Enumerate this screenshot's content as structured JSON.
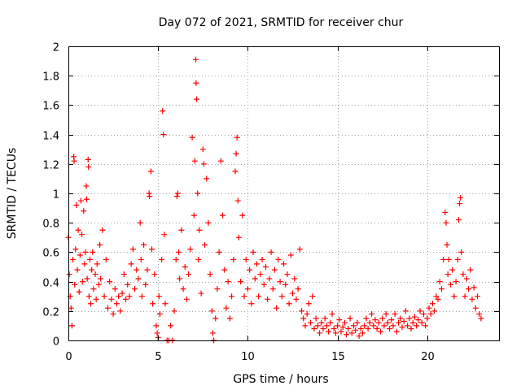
{
  "chart_data": {
    "type": "scatter",
    "title": "Day 072 of 2021, SRMTID for receiver chur",
    "xlabel": "GPS time / hours",
    "ylabel": "SRMTID / TECUs",
    "xlim": [
      0,
      24
    ],
    "ylim": [
      0,
      2
    ],
    "x_ticks": [
      0,
      5,
      10,
      15,
      20
    ],
    "x_tick_labels": [
      "0",
      "5",
      "10",
      "15",
      "20"
    ],
    "y_ticks": [
      0,
      0.2,
      0.4,
      0.6,
      0.8,
      1,
      1.2,
      1.4,
      1.6,
      1.8,
      2
    ],
    "y_tick_labels": [
      "0",
      "0.2",
      "0.4",
      "0.6",
      "0.8",
      "1",
      "1.2",
      "1.4",
      "1.6",
      "1.8",
      "2"
    ],
    "grid": true,
    "marker": "+",
    "marker_color": "#ff0000",
    "series": [
      {
        "name": "SRMTID",
        "points": [
          [
            0.0,
            0.7
          ],
          [
            0.05,
            0.45
          ],
          [
            0.1,
            0.3
          ],
          [
            0.15,
            0.22
          ],
          [
            0.2,
            0.1
          ],
          [
            0.25,
            0.55
          ],
          [
            0.3,
            1.25
          ],
          [
            0.32,
            1.22
          ],
          [
            0.35,
            0.38
          ],
          [
            0.4,
            0.62
          ],
          [
            0.45,
            0.92
          ],
          [
            0.5,
            0.48
          ],
          [
            0.55,
            0.75
          ],
          [
            0.6,
            0.33
          ],
          [
            0.65,
            0.58
          ],
          [
            0.7,
            0.95
          ],
          [
            0.75,
            0.72
          ],
          [
            0.8,
            0.4
          ],
          [
            0.85,
            0.88
          ],
          [
            0.9,
            0.52
          ],
          [
            0.95,
            0.6
          ],
          [
            1.0,
            1.05
          ],
          [
            1.02,
            0.96
          ],
          [
            1.05,
            0.42
          ],
          [
            1.1,
            1.23
          ],
          [
            1.12,
            1.18
          ],
          [
            1.15,
            0.3
          ],
          [
            1.2,
            0.55
          ],
          [
            1.25,
            0.25
          ],
          [
            1.3,
            0.48
          ],
          [
            1.35,
            0.6
          ],
          [
            1.4,
            0.35
          ],
          [
            1.5,
            0.45
          ],
          [
            1.55,
            0.28
          ],
          [
            1.6,
            0.52
          ],
          [
            1.7,
            0.38
          ],
          [
            1.75,
            0.65
          ],
          [
            1.8,
            0.42
          ],
          [
            1.9,
            0.75
          ],
          [
            2.0,
            0.3
          ],
          [
            2.1,
            0.55
          ],
          [
            2.2,
            0.22
          ],
          [
            2.3,
            0.4
          ],
          [
            2.4,
            0.28
          ],
          [
            2.5,
            0.18
          ],
          [
            2.6,
            0.35
          ],
          [
            2.7,
            0.25
          ],
          [
            2.8,
            0.3
          ],
          [
            2.9,
            0.2
          ],
          [
            3.0,
            0.32
          ],
          [
            3.1,
            0.45
          ],
          [
            3.2,
            0.28
          ],
          [
            3.3,
            0.38
          ],
          [
            3.4,
            0.3
          ],
          [
            3.5,
            0.52
          ],
          [
            3.6,
            0.62
          ],
          [
            3.7,
            0.35
          ],
          [
            3.8,
            0.48
          ],
          [
            3.9,
            0.42
          ],
          [
            4.0,
            0.8
          ],
          [
            4.05,
            0.55
          ],
          [
            4.1,
            0.3
          ],
          [
            4.2,
            0.65
          ],
          [
            4.3,
            0.38
          ],
          [
            4.4,
            0.48
          ],
          [
            4.5,
            1.0
          ],
          [
            4.52,
            0.98
          ],
          [
            4.6,
            1.15
          ],
          [
            4.65,
            0.62
          ],
          [
            4.7,
            0.25
          ],
          [
            4.8,
            0.45
          ],
          [
            4.9,
            0.1
          ],
          [
            4.95,
            0.05
          ],
          [
            5.0,
            0.02
          ],
          [
            5.05,
            0.3
          ],
          [
            5.1,
            0.18
          ],
          [
            5.2,
            0.55
          ],
          [
            5.25,
            1.56
          ],
          [
            5.3,
            1.4
          ],
          [
            5.35,
            0.72
          ],
          [
            5.4,
            0.25
          ],
          [
            5.5,
            0.0
          ],
          [
            5.6,
            0.0
          ],
          [
            5.7,
            0.1
          ],
          [
            5.8,
            0.0
          ],
          [
            5.9,
            0.2
          ],
          [
            6.0,
            0.55
          ],
          [
            6.05,
            0.98
          ],
          [
            6.1,
            1.0
          ],
          [
            6.15,
            0.6
          ],
          [
            6.2,
            0.42
          ],
          [
            6.3,
            0.75
          ],
          [
            6.4,
            0.35
          ],
          [
            6.5,
            0.5
          ],
          [
            6.6,
            0.28
          ],
          [
            6.7,
            0.45
          ],
          [
            6.8,
            0.62
          ],
          [
            6.9,
            1.38
          ],
          [
            7.0,
            0.85
          ],
          [
            7.05,
            1.22
          ],
          [
            7.1,
            1.91
          ],
          [
            7.12,
            1.75
          ],
          [
            7.15,
            1.64
          ],
          [
            7.2,
            1.0
          ],
          [
            7.25,
            0.55
          ],
          [
            7.3,
            0.75
          ],
          [
            7.4,
            0.32
          ],
          [
            7.5,
            1.3
          ],
          [
            7.55,
            1.2
          ],
          [
            7.6,
            0.65
          ],
          [
            7.7,
            1.1
          ],
          [
            7.8,
            0.8
          ],
          [
            7.9,
            0.45
          ],
          [
            8.0,
            0.2
          ],
          [
            8.05,
            0.05
          ],
          [
            8.1,
            0.0
          ],
          [
            8.2,
            0.15
          ],
          [
            8.3,
            0.35
          ],
          [
            8.4,
            0.6
          ],
          [
            8.5,
            1.22
          ],
          [
            8.6,
            0.85
          ],
          [
            8.7,
            0.48
          ],
          [
            8.8,
            0.22
          ],
          [
            8.9,
            0.4
          ],
          [
            9.0,
            0.15
          ],
          [
            9.1,
            0.3
          ],
          [
            9.2,
            0.55
          ],
          [
            9.3,
            1.15
          ],
          [
            9.35,
            1.27
          ],
          [
            9.4,
            1.38
          ],
          [
            9.45,
            0.95
          ],
          [
            9.5,
            0.7
          ],
          [
            9.6,
            0.4
          ],
          [
            9.7,
            0.85
          ],
          [
            9.8,
            0.3
          ],
          [
            9.9,
            0.55
          ],
          [
            10.0,
            0.35
          ],
          [
            10.1,
            0.48
          ],
          [
            10.2,
            0.25
          ],
          [
            10.3,
            0.6
          ],
          [
            10.4,
            0.42
          ],
          [
            10.5,
            0.52
          ],
          [
            10.6,
            0.3
          ],
          [
            10.7,
            0.45
          ],
          [
            10.8,
            0.55
          ],
          [
            10.9,
            0.38
          ],
          [
            11.0,
            0.5
          ],
          [
            11.1,
            0.28
          ],
          [
            11.2,
            0.42
          ],
          [
            11.3,
            0.6
          ],
          [
            11.4,
            0.35
          ],
          [
            11.5,
            0.48
          ],
          [
            11.6,
            0.22
          ],
          [
            11.7,
            0.55
          ],
          [
            11.8,
            0.4
          ],
          [
            11.9,
            0.3
          ],
          [
            12.0,
            0.52
          ],
          [
            12.1,
            0.38
          ],
          [
            12.2,
            0.45
          ],
          [
            12.3,
            0.25
          ],
          [
            12.4,
            0.58
          ],
          [
            12.5,
            0.32
          ],
          [
            12.6,
            0.42
          ],
          [
            12.7,
            0.28
          ],
          [
            12.8,
            0.35
          ],
          [
            12.9,
            0.62
          ],
          [
            13.0,
            0.2
          ],
          [
            13.1,
            0.15
          ],
          [
            13.2,
            0.1
          ],
          [
            13.3,
            0.18
          ],
          [
            13.4,
            0.25
          ],
          [
            13.5,
            0.12
          ],
          [
            13.6,
            0.3
          ],
          [
            13.7,
            0.08
          ],
          [
            13.8,
            0.15
          ],
          [
            13.9,
            0.1
          ],
          [
            14.0,
            0.05
          ],
          [
            14.1,
            0.12
          ],
          [
            14.2,
            0.08
          ],
          [
            14.3,
            0.15
          ],
          [
            14.4,
            0.1
          ],
          [
            14.5,
            0.06
          ],
          [
            14.6,
            0.12
          ],
          [
            14.7,
            0.18
          ],
          [
            14.8,
            0.08
          ],
          [
            14.9,
            0.05
          ],
          [
            15.0,
            0.1
          ],
          [
            15.1,
            0.14
          ],
          [
            15.2,
            0.06
          ],
          [
            15.3,
            0.09
          ],
          [
            15.4,
            0.12
          ],
          [
            15.5,
            0.04
          ],
          [
            15.6,
            0.08
          ],
          [
            15.7,
            0.15
          ],
          [
            15.8,
            0.05
          ],
          [
            15.9,
            0.1
          ],
          [
            16.0,
            0.07
          ],
          [
            16.1,
            0.12
          ],
          [
            16.2,
            0.03
          ],
          [
            16.3,
            0.08
          ],
          [
            16.4,
            0.05
          ],
          [
            16.5,
            0.1
          ],
          [
            16.6,
            0.15
          ],
          [
            16.7,
            0.08
          ],
          [
            16.8,
            0.12
          ],
          [
            16.9,
            0.18
          ],
          [
            17.0,
            0.1
          ],
          [
            17.1,
            0.14
          ],
          [
            17.2,
            0.08
          ],
          [
            17.3,
            0.12
          ],
          [
            17.4,
            0.06
          ],
          [
            17.5,
            0.15
          ],
          [
            17.6,
            0.1
          ],
          [
            17.7,
            0.18
          ],
          [
            17.8,
            0.12
          ],
          [
            17.9,
            0.08
          ],
          [
            18.0,
            0.14
          ],
          [
            18.1,
            0.1
          ],
          [
            18.2,
            0.18
          ],
          [
            18.3,
            0.06
          ],
          [
            18.4,
            0.12
          ],
          [
            18.5,
            0.15
          ],
          [
            18.6,
            0.09
          ],
          [
            18.7,
            0.13
          ],
          [
            18.8,
            0.2
          ],
          [
            18.9,
            0.1
          ],
          [
            19.0,
            0.15
          ],
          [
            19.1,
            0.08
          ],
          [
            19.2,
            0.12
          ],
          [
            19.3,
            0.16
          ],
          [
            19.4,
            0.1
          ],
          [
            19.5,
            0.14
          ],
          [
            19.6,
            0.2
          ],
          [
            19.7,
            0.12
          ],
          [
            19.8,
            0.18
          ],
          [
            19.9,
            0.1
          ],
          [
            20.0,
            0.15
          ],
          [
            20.1,
            0.22
          ],
          [
            20.2,
            0.18
          ],
          [
            20.3,
            0.25
          ],
          [
            20.4,
            0.2
          ],
          [
            20.5,
            0.3
          ],
          [
            20.6,
            0.28
          ],
          [
            20.7,
            0.4
          ],
          [
            20.8,
            0.35
          ],
          [
            20.9,
            0.55
          ],
          [
            21.0,
            0.87
          ],
          [
            21.05,
            0.8
          ],
          [
            21.1,
            0.65
          ],
          [
            21.15,
            0.45
          ],
          [
            21.2,
            0.55
          ],
          [
            21.3,
            0.38
          ],
          [
            21.4,
            0.48
          ],
          [
            21.5,
            0.3
          ],
          [
            21.6,
            0.4
          ],
          [
            21.7,
            0.55
          ],
          [
            21.75,
            0.82
          ],
          [
            21.8,
            0.93
          ],
          [
            21.85,
            0.97
          ],
          [
            21.9,
            0.6
          ],
          [
            22.0,
            0.45
          ],
          [
            22.1,
            0.3
          ],
          [
            22.2,
            0.42
          ],
          [
            22.3,
            0.35
          ],
          [
            22.4,
            0.48
          ],
          [
            22.5,
            0.28
          ],
          [
            22.6,
            0.36
          ],
          [
            22.7,
            0.22
          ],
          [
            22.8,
            0.3
          ],
          [
            22.9,
            0.18
          ],
          [
            23.0,
            0.15
          ]
        ]
      }
    ]
  }
}
